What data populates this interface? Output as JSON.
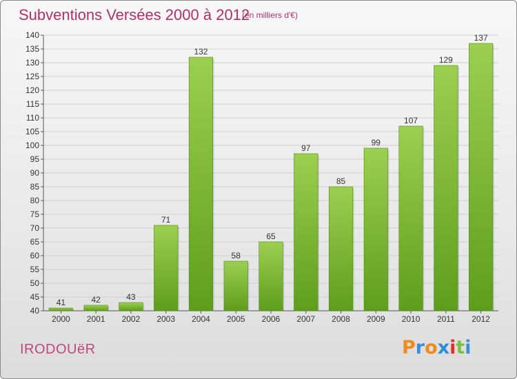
{
  "header": {
    "title": "Subventions Versées 2000 à 2012",
    "subtitle": "(en milliers d'€)"
  },
  "footer": {
    "commune": "IRODOUëR",
    "logo": "Proxiti"
  },
  "colors": {
    "title": "#b0306a",
    "bar_light": "#9ccf4f",
    "bar_dark": "#5e9e1c",
    "logo_letters": [
      "#f08a1c",
      "#3a8fd6",
      "#f08a1c",
      "#2a8fd6",
      "#e0302a",
      "#7cc242",
      "#3a8fd6"
    ]
  },
  "chart_data": {
    "type": "bar",
    "categories": [
      "2000",
      "2001",
      "2002",
      "2003",
      "2004",
      "2005",
      "2006",
      "2007",
      "2008",
      "2009",
      "2010",
      "2011",
      "2012"
    ],
    "values": [
      41,
      42,
      43,
      71,
      132,
      58,
      65,
      97,
      85,
      99,
      107,
      129,
      137
    ],
    "ylim": [
      40,
      140
    ],
    "yticks": [
      40,
      45,
      50,
      55,
      60,
      65,
      70,
      75,
      80,
      85,
      90,
      95,
      100,
      105,
      110,
      115,
      120,
      125,
      130,
      135,
      140
    ],
    "grid": true,
    "legend": "none"
  }
}
